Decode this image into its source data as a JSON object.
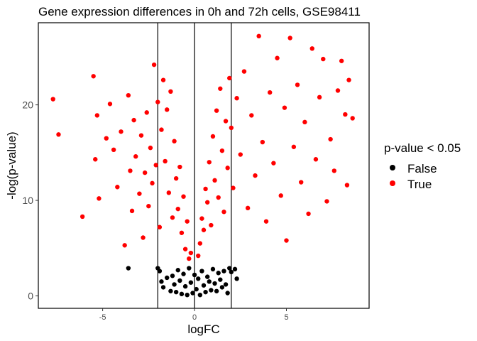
{
  "chart_data": {
    "type": "scatter",
    "title": "Gene expression differences in 0h and 72h cells, GSE98411",
    "xlabel": "logFC",
    "ylabel": "-log(p-value)",
    "xlim": [
      -8.5,
      9.5
    ],
    "ylim": [
      -1.3,
      28.6
    ],
    "x_ticks": [
      {
        "value": -5,
        "label": "-5"
      },
      {
        "value": 0,
        "label": "0"
      },
      {
        "value": 5,
        "label": "5"
      }
    ],
    "y_ticks": [
      {
        "value": 0,
        "label": "0"
      },
      {
        "value": 10,
        "label": "10"
      },
      {
        "value": 20,
        "label": "20"
      }
    ],
    "vlines": [
      -2,
      0,
      2
    ],
    "grid": false,
    "legend": {
      "title": "p-value < 0.05",
      "position": "right",
      "entries": [
        {
          "label": "False",
          "color": "#000000"
        },
        {
          "label": "True",
          "color": "#ff0000"
        }
      ]
    },
    "series": [
      {
        "name": "False",
        "color": "#000000",
        "points": [
          [
            -3.6,
            2.9
          ],
          [
            -2.0,
            2.9
          ],
          [
            -1.9,
            2.6
          ],
          [
            -1.8,
            1.5
          ],
          [
            -1.7,
            0.9
          ],
          [
            -1.5,
            1.9
          ],
          [
            -1.3,
            0.5
          ],
          [
            -1.2,
            2.1
          ],
          [
            -1.1,
            1.2
          ],
          [
            -1.0,
            0.4
          ],
          [
            -0.9,
            2.7
          ],
          [
            -0.8,
            1.6
          ],
          [
            -0.7,
            0.2
          ],
          [
            -0.6,
            2.3
          ],
          [
            -0.5,
            1.0
          ],
          [
            -0.4,
            0.1
          ],
          [
            -0.3,
            2.9
          ],
          [
            -0.2,
            1.4
          ],
          [
            -0.1,
            0.3
          ],
          [
            0.0,
            2.2
          ],
          [
            0.1,
            0.7
          ],
          [
            0.2,
            1.8
          ],
          [
            0.3,
            0.1
          ],
          [
            0.4,
            2.6
          ],
          [
            0.5,
            1.1
          ],
          [
            0.6,
            0.4
          ],
          [
            0.7,
            2.0
          ],
          [
            0.8,
            1.5
          ],
          [
            0.9,
            0.6
          ],
          [
            1.0,
            2.8
          ],
          [
            1.1,
            1.3
          ],
          [
            1.2,
            0.5
          ],
          [
            1.3,
            2.4
          ],
          [
            1.4,
            1.7
          ],
          [
            1.5,
            0.9
          ],
          [
            1.6,
            2.6
          ],
          [
            1.7,
            1.2
          ],
          [
            1.8,
            0.3
          ],
          [
            1.9,
            2.9
          ],
          [
            2.0,
            2.5
          ],
          [
            2.2,
            2.8
          ],
          [
            2.3,
            1.8
          ]
        ]
      },
      {
        "name": "True",
        "color": "#ff0000",
        "points": [
          [
            -7.7,
            20.6
          ],
          [
            -7.4,
            16.9
          ],
          [
            -6.1,
            8.3
          ],
          [
            -5.5,
            23.0
          ],
          [
            -5.4,
            14.3
          ],
          [
            -5.3,
            18.9
          ],
          [
            -5.2,
            10.2
          ],
          [
            -4.8,
            16.5
          ],
          [
            -4.6,
            20.1
          ],
          [
            -4.4,
            15.3
          ],
          [
            -4.2,
            11.4
          ],
          [
            -4.0,
            17.2
          ],
          [
            -3.8,
            5.3
          ],
          [
            -3.6,
            21.0
          ],
          [
            -3.5,
            13.1
          ],
          [
            -3.4,
            8.9
          ],
          [
            -3.3,
            18.4
          ],
          [
            -3.2,
            14.6
          ],
          [
            -3.0,
            10.7
          ],
          [
            -2.9,
            16.8
          ],
          [
            -2.8,
            6.1
          ],
          [
            -2.7,
            12.9
          ],
          [
            -2.6,
            19.2
          ],
          [
            -2.5,
            9.4
          ],
          [
            -2.4,
            15.5
          ],
          [
            -2.3,
            11.8
          ],
          [
            -2.2,
            24.2
          ],
          [
            -2.1,
            13.7
          ],
          [
            -2.0,
            20.3
          ],
          [
            -1.9,
            7.2
          ],
          [
            -1.8,
            17.4
          ],
          [
            -1.7,
            22.6
          ],
          [
            -1.6,
            14.1
          ],
          [
            -1.5,
            19.5
          ],
          [
            -1.4,
            10.8
          ],
          [
            -1.3,
            21.4
          ],
          [
            -1.2,
            8.2
          ],
          [
            -1.1,
            16.2
          ],
          [
            -1.0,
            12.3
          ],
          [
            -0.9,
            9.1
          ],
          [
            -0.8,
            13.5
          ],
          [
            -0.7,
            6.6
          ],
          [
            -0.6,
            10.4
          ],
          [
            -0.5,
            4.9
          ],
          [
            -0.4,
            7.8
          ],
          [
            -0.3,
            3.9
          ],
          [
            -0.2,
            4.5
          ],
          [
            0.2,
            4.2
          ],
          [
            0.3,
            5.5
          ],
          [
            0.4,
            8.1
          ],
          [
            0.5,
            6.9
          ],
          [
            0.6,
            11.2
          ],
          [
            0.7,
            9.8
          ],
          [
            0.8,
            14.0
          ],
          [
            0.9,
            7.4
          ],
          [
            1.0,
            16.7
          ],
          [
            1.1,
            12.1
          ],
          [
            1.2,
            19.4
          ],
          [
            1.3,
            10.3
          ],
          [
            1.4,
            21.7
          ],
          [
            1.5,
            15.2
          ],
          [
            1.6,
            8.8
          ],
          [
            1.7,
            18.3
          ],
          [
            1.8,
            13.4
          ],
          [
            1.9,
            22.8
          ],
          [
            2.0,
            17.6
          ],
          [
            2.1,
            11.3
          ],
          [
            2.3,
            20.7
          ],
          [
            2.5,
            14.8
          ],
          [
            2.7,
            23.5
          ],
          [
            2.9,
            9.2
          ],
          [
            3.1,
            18.9
          ],
          [
            3.3,
            12.6
          ],
          [
            3.5,
            27.2
          ],
          [
            3.7,
            16.1
          ],
          [
            3.9,
            7.8
          ],
          [
            4.1,
            21.3
          ],
          [
            4.3,
            13.9
          ],
          [
            4.5,
            24.9
          ],
          [
            4.7,
            10.5
          ],
          [
            4.9,
            19.7
          ],
          [
            5.0,
            5.8
          ],
          [
            5.2,
            27.0
          ],
          [
            5.4,
            15.6
          ],
          [
            5.6,
            22.1
          ],
          [
            5.8,
            11.9
          ],
          [
            6.0,
            18.2
          ],
          [
            6.2,
            8.6
          ],
          [
            6.4,
            25.9
          ],
          [
            6.6,
            14.3
          ],
          [
            6.8,
            20.8
          ],
          [
            7.0,
            24.8
          ],
          [
            7.2,
            9.9
          ],
          [
            7.4,
            16.4
          ],
          [
            7.6,
            13.1
          ],
          [
            7.8,
            21.5
          ],
          [
            8.0,
            24.6
          ],
          [
            8.2,
            19.0
          ],
          [
            8.3,
            11.6
          ],
          [
            8.4,
            22.6
          ],
          [
            8.6,
            18.6
          ]
        ]
      }
    ]
  }
}
